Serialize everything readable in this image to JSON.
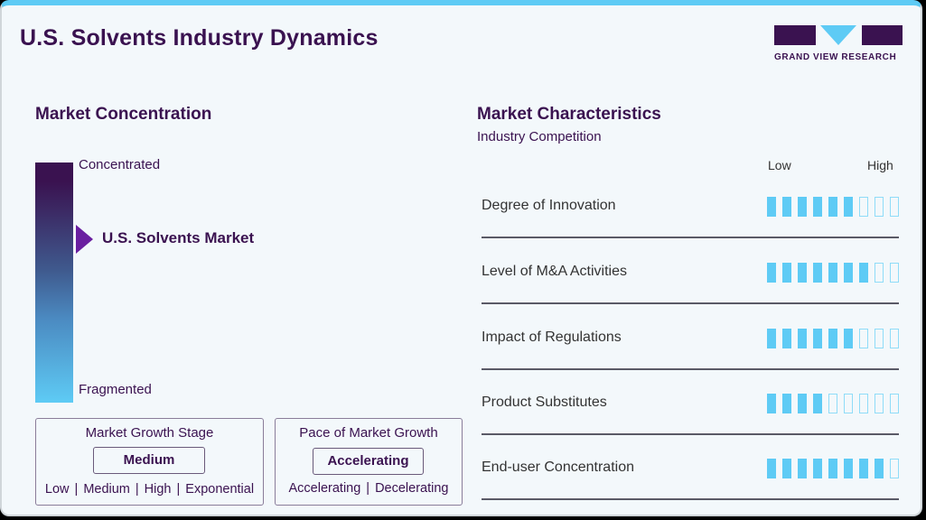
{
  "header": {
    "title": "U.S. Solvents Industry Dynamics",
    "logo_text": "GRAND VIEW RESEARCH"
  },
  "concentration": {
    "heading": "Market Concentration",
    "top_label": "Concentrated",
    "bottom_label": "Fragmented",
    "marker_label": "U.S. Solvents Market"
  },
  "growth_stage": {
    "title": "Market Growth Stage",
    "value": "Medium",
    "options": [
      "Low",
      "Medium",
      "High",
      "Exponential"
    ]
  },
  "growth_pace": {
    "title": "Pace of Market Growth",
    "value": "Accelerating",
    "options": [
      "Accelerating",
      "Decelerating"
    ]
  },
  "characteristics": {
    "heading": "Market Characteristics",
    "subheading": "Industry Competition",
    "scale_low": "Low",
    "scale_high": "High",
    "max_level": 9,
    "rows": [
      {
        "label": "Degree of Innovation",
        "level": 6
      },
      {
        "label": "Level of M&A Activities",
        "level": 7
      },
      {
        "label": "Impact of Regulations",
        "level": 6
      },
      {
        "label": "Product Substitutes",
        "level": 4
      },
      {
        "label": "End-user Concentration",
        "level": 8
      }
    ]
  },
  "colors": {
    "brand_purple": "#3a1250",
    "accent_blue": "#5ecbf5",
    "marker_purple": "#6a1fa0"
  }
}
